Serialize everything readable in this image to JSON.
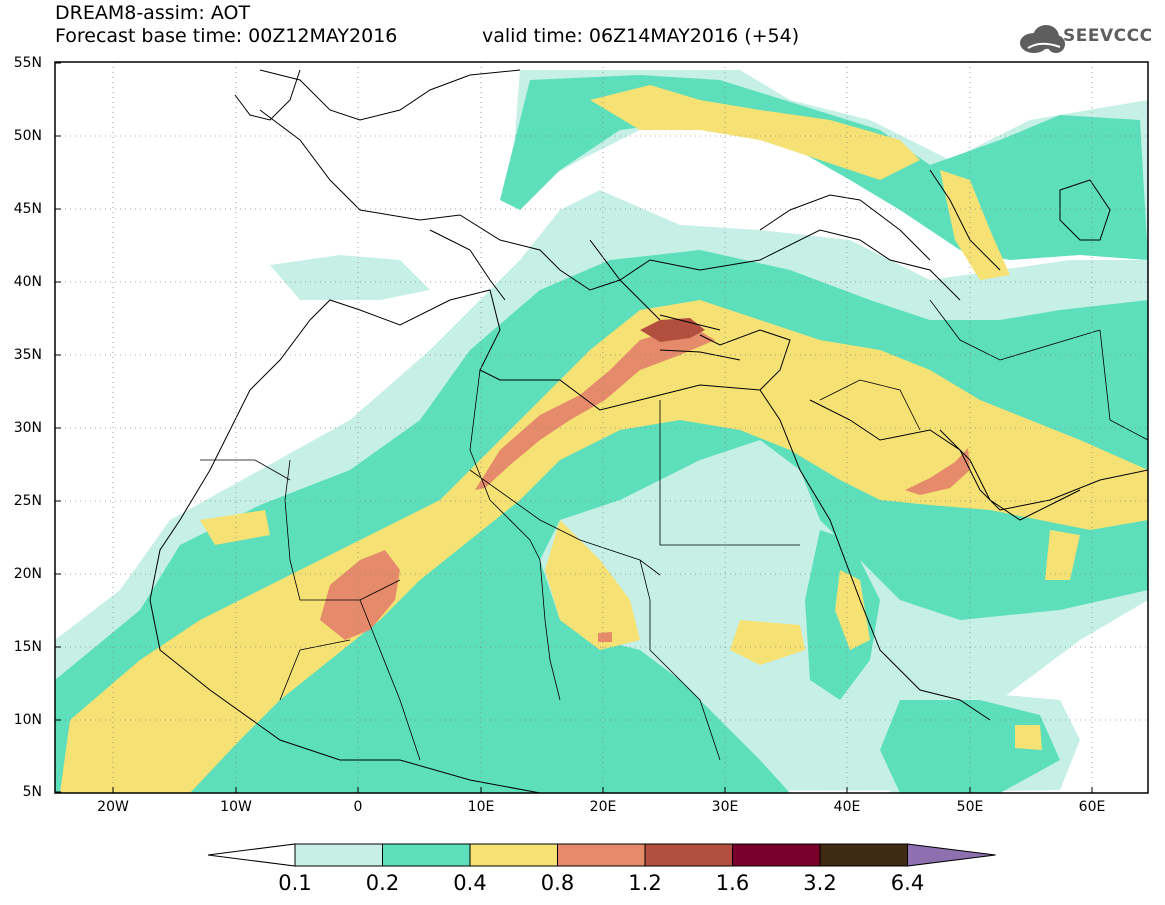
{
  "header": {
    "title_line1": "DREAM8-assim: AOT",
    "title_line2": "Forecast base time: 00Z12MAY2016",
    "valid_time": "valid time: 06Z14MAY2016 (+54)",
    "logo_text": "SEEVCCC"
  },
  "map": {
    "region": {
      "lon_min": -25,
      "lon_max": 65,
      "lat_min": 5,
      "lat_max": 55
    },
    "lat_labels": [
      "55N",
      "50N",
      "45N",
      "40N",
      "35N",
      "30N",
      "25N",
      "20N",
      "15N",
      "10N",
      "5N"
    ],
    "lon_labels": [
      "20W",
      "10W",
      "0",
      "10E",
      "20E",
      "30E",
      "40E",
      "50E",
      "60E"
    ],
    "field_colors": [
      "#c6f0e6",
      "#5ddfbb",
      "#f5e174",
      "#e58a6a",
      "#b24f3f",
      "#78002a",
      "#3f2a14",
      "#8e6fb0"
    ]
  },
  "colorbar": {
    "levels": [
      "0.1",
      "0.2",
      "0.4",
      "0.8",
      "1.2",
      "1.6",
      "3.2",
      "6.4"
    ],
    "colors": [
      "#c6f0e6",
      "#5ddfbb",
      "#f5e174",
      "#e58a6a",
      "#b24f3f",
      "#78002a",
      "#3f2a14",
      "#8e6fb0"
    ]
  }
}
